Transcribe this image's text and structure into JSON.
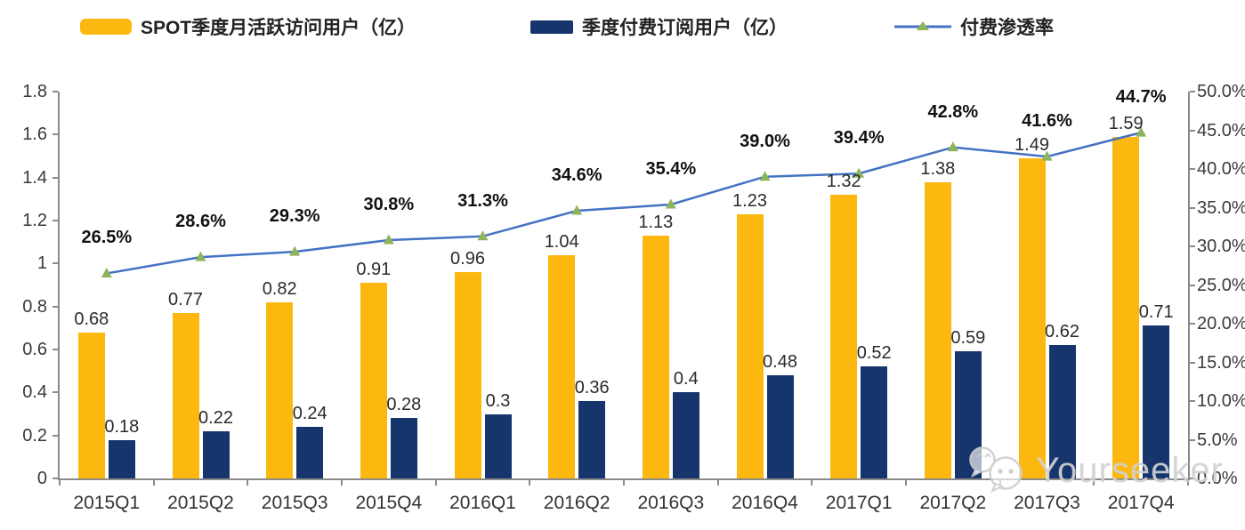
{
  "watermark": {
    "text": "Yourseeker",
    "icon": "wechat-icon"
  },
  "chart_data": {
    "type": "bar+line",
    "title": "",
    "categories": [
      "2015Q1",
      "2015Q2",
      "2015Q3",
      "2015Q4",
      "2016Q1",
      "2016Q2",
      "2016Q3",
      "2016Q4",
      "2017Q1",
      "2017Q2",
      "2017Q3",
      "2017Q4"
    ],
    "series": [
      {
        "name": "SPOT季度月活跃访问用户（亿）",
        "type": "bar",
        "axis": "left",
        "color": "#FCB80E",
        "values": [
          0.68,
          0.77,
          0.82,
          0.91,
          0.96,
          1.04,
          1.13,
          1.23,
          1.32,
          1.38,
          1.49,
          1.59
        ],
        "labels": [
          "0.68",
          "0.77",
          "0.82",
          "0.91",
          "0.96",
          "1.04",
          "1.13",
          "1.23",
          "1.32",
          "1.38",
          "1.49",
          "1.59"
        ]
      },
      {
        "name": "季度付费订阅用户（亿）",
        "type": "bar",
        "axis": "left",
        "color": "#16356D",
        "values": [
          0.18,
          0.22,
          0.24,
          0.28,
          0.3,
          0.36,
          0.4,
          0.48,
          0.52,
          0.59,
          0.62,
          0.71
        ],
        "labels": [
          "0.18",
          "0.22",
          "0.24",
          "0.28",
          "0.3",
          "0.36",
          "0.4",
          "0.48",
          "0.52",
          "0.59",
          "0.62",
          "0.71"
        ]
      },
      {
        "name": "付费渗透率",
        "type": "line",
        "axis": "right",
        "color": "#4472C4",
        "marker": "triangle",
        "marker_color": "#8DB45A",
        "values": [
          26.5,
          28.6,
          29.3,
          30.8,
          31.3,
          34.6,
          35.4,
          39.0,
          39.4,
          42.8,
          41.6,
          44.7
        ],
        "labels": [
          "26.5%",
          "28.6%",
          "29.3%",
          "30.8%",
          "31.3%",
          "34.6%",
          "35.4%",
          "39.0%",
          "39.4%",
          "42.8%",
          "41.6%",
          "44.7%"
        ]
      }
    ],
    "left_axis": {
      "min": 0,
      "max": 1.8,
      "step": 0.2,
      "labels": [
        "0",
        "0.2",
        "0.4",
        "0.6",
        "0.8",
        "1",
        "1.2",
        "1.4",
        "1.6",
        "1.8"
      ]
    },
    "right_axis": {
      "min": 0,
      "max": 50,
      "step": 5,
      "labels": [
        "0.0%",
        "5.0%",
        "10.0%",
        "15.0%",
        "20.0%",
        "25.0%",
        "30.0%",
        "35.0%",
        "40.0%",
        "45.0%",
        "50.0%"
      ]
    },
    "grid": false,
    "legend_position": "top"
  }
}
